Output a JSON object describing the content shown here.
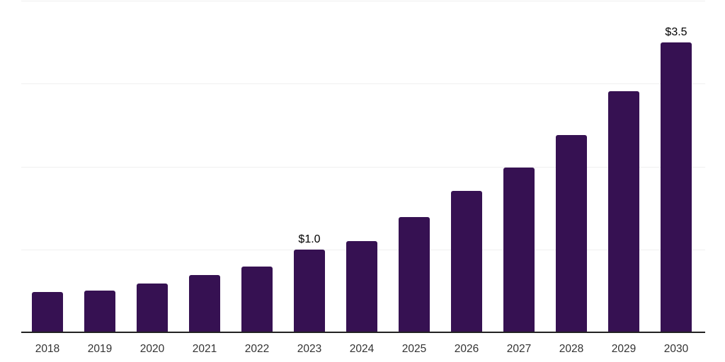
{
  "chart_data": {
    "type": "bar",
    "title": "",
    "xlabel": "",
    "ylabel": "",
    "categories": [
      "2018",
      "2019",
      "2020",
      "2021",
      "2022",
      "2023",
      "2024",
      "2025",
      "2026",
      "2027",
      "2028",
      "2029",
      "2030"
    ],
    "values": [
      0.49,
      0.5,
      0.59,
      0.69,
      0.79,
      1.0,
      1.1,
      1.39,
      1.71,
      1.99,
      2.38,
      2.91,
      3.5
    ],
    "data_labels": [
      {
        "category": "2023",
        "text": "$1.0"
      },
      {
        "category": "2030",
        "text": "$3.5"
      }
    ],
    "ylim": [
      0,
      4.0
    ],
    "gridline_values": [
      1,
      2,
      3,
      4
    ],
    "grid": true,
    "legend": "none",
    "colors": {
      "bar": "#361152",
      "axis_line": "#222222",
      "gridline": "#efefef",
      "tick_label": "#333333",
      "data_label": "#000000",
      "background": "#ffffff"
    }
  }
}
